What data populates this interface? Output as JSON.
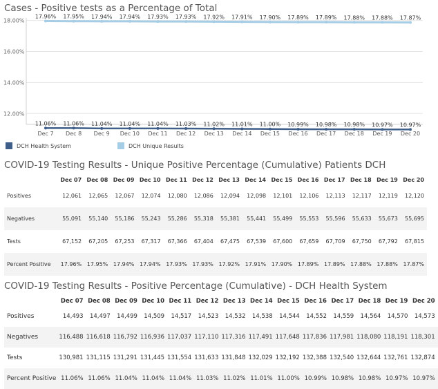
{
  "chart_title": "Cases - Positive tests as a Percentage of Total",
  "chart_data": {
    "type": "line",
    "x": [
      "Dec 7",
      "Dec 8",
      "Dec 9",
      "Dec 10",
      "Dec 11",
      "Dec 12",
      "Dec 13",
      "Dec 14",
      "Dec 15",
      "Dec 16",
      "Dec 17",
      "Dec 18",
      "Dec 19",
      "Dec 20"
    ],
    "y_ticks": [
      "18.00%",
      "16.00%",
      "14.00%",
      "12.00%"
    ],
    "ylim": [
      11.3,
      18.07
    ],
    "grid": true,
    "legend_placement": "bottom-left",
    "series": [
      {
        "name": "DCH Health System",
        "color": "#3f5f8a",
        "values": [
          11.06,
          11.06,
          11.04,
          11.04,
          11.04,
          11.03,
          11.02,
          11.01,
          11.0,
          10.99,
          10.98,
          10.98,
          10.97,
          10.97
        ],
        "labels": [
          "11.06%",
          "11.06%",
          "11.04%",
          "11.04%",
          "11.04%",
          "11.03%",
          "11.02%",
          "11.01%",
          "11.00%",
          "10.99%",
          "10.98%",
          "10.98%",
          "10.97%",
          "10.97%"
        ]
      },
      {
        "name": "DCH Unique Results",
        "color": "#a6cde6",
        "values": [
          17.96,
          17.95,
          17.94,
          17.94,
          17.93,
          17.93,
          17.92,
          17.91,
          17.9,
          17.89,
          17.89,
          17.88,
          17.88,
          17.87
        ],
        "labels": [
          "17.96%",
          "17.95%",
          "17.94%",
          "17.94%",
          "17.93%",
          "17.93%",
          "17.92%",
          "17.91%",
          "17.90%",
          "17.89%",
          "17.89%",
          "17.88%",
          "17.88%",
          "17.87%"
        ]
      }
    ]
  },
  "legend": {
    "item1": "DCH Health System",
    "item2": "DCH Unique Results"
  },
  "table1": {
    "title": "COVID-19 Testing Results - Unique Positive Percentage (Cumulative) Patients DCH",
    "columns": [
      "Dec 07",
      "Dec 08",
      "Dec 09",
      "Dec 10",
      "Dec 11",
      "Dec 12",
      "Dec 13",
      "Dec 14",
      "Dec 15",
      "Dec 16",
      "Dec 17",
      "Dec 18",
      "Dec 19",
      "Dec 20"
    ],
    "rows": [
      {
        "label": "Positives",
        "values": [
          "12,061",
          "12,065",
          "12,067",
          "12,074",
          "12,080",
          "12,086",
          "12,094",
          "12,098",
          "12,101",
          "12,106",
          "12,113",
          "12,117",
          "12,119",
          "12,120"
        ]
      },
      {
        "label": "Negatives",
        "values": [
          "55,091",
          "55,140",
          "55,186",
          "55,243",
          "55,286",
          "55,318",
          "55,381",
          "55,441",
          "55,499",
          "55,553",
          "55,596",
          "55,633",
          "55,673",
          "55,695"
        ]
      },
      {
        "label": "Tests",
        "values": [
          "67,152",
          "67,205",
          "67,253",
          "67,317",
          "67,366",
          "67,404",
          "67,475",
          "67,539",
          "67,600",
          "67,659",
          "67,709",
          "67,750",
          "67,792",
          "67,815"
        ]
      },
      {
        "label": "Percent Positive",
        "values": [
          "17.96%",
          "17.95%",
          "17.94%",
          "17.94%",
          "17.93%",
          "17.93%",
          "17.92%",
          "17.91%",
          "17.90%",
          "17.89%",
          "17.89%",
          "17.88%",
          "17.88%",
          "17.87%"
        ]
      }
    ]
  },
  "table2": {
    "title": "COVID-19 Testing Results - Positive Percentage (Cumulative) - DCH Health System",
    "columns": [
      "Dec 07",
      "Dec 08",
      "Dec 09",
      "Dec 10",
      "Dec 11",
      "Dec 12",
      "Dec 13",
      "Dec 14",
      "Dec 15",
      "Dec 16",
      "Dec 17",
      "Dec 18",
      "Dec 19",
      "Dec 20"
    ],
    "rows": [
      {
        "label": "Positives",
        "values": [
          "14,493",
          "14,497",
          "14,499",
          "14,509",
          "14,517",
          "14,523",
          "14,532",
          "14,538",
          "14,544",
          "14,552",
          "14,559",
          "14,564",
          "14,570",
          "14,573"
        ]
      },
      {
        "label": "Negatives",
        "values": [
          "116,488",
          "116,618",
          "116,792",
          "116,936",
          "117,037",
          "117,110",
          "117,316",
          "117,491",
          "117,648",
          "117,836",
          "117,981",
          "118,080",
          "118,191",
          "118,301"
        ]
      },
      {
        "label": "Tests",
        "values": [
          "130,981",
          "131,115",
          "131,291",
          "131,445",
          "131,554",
          "131,633",
          "131,848",
          "132,029",
          "132,192",
          "132,388",
          "132,540",
          "132,644",
          "132,761",
          "132,874"
        ]
      },
      {
        "label": "Percent Positive",
        "values": [
          "11.06%",
          "11.06%",
          "11.04%",
          "11.04%",
          "11.04%",
          "11.03%",
          "11.02%",
          "11.01%",
          "11.00%",
          "10.99%",
          "10.98%",
          "10.98%",
          "10.97%",
          "10.97%"
        ]
      }
    ]
  }
}
